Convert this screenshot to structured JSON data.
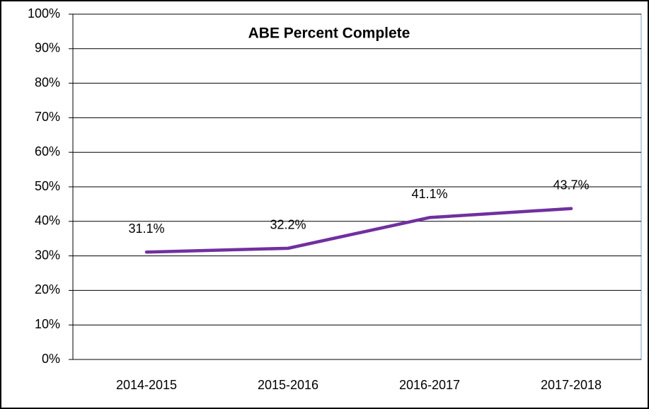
{
  "chart_data": {
    "type": "line",
    "title": "ABE Percent Complete",
    "categories": [
      "2014-2015",
      "2015-2016",
      "2016-2017",
      "2017-2018"
    ],
    "series": [
      {
        "name": "ABE Percent Complete",
        "color": "#7030a0",
        "values": [
          31.1,
          32.2,
          41.1,
          43.7
        ],
        "value_labels": [
          "31.1%",
          "32.2%",
          "41.1%",
          "43.7%"
        ]
      }
    ],
    "ylim": [
      0,
      100
    ],
    "yticks": [
      {
        "value": 0,
        "label": "0%"
      },
      {
        "value": 10,
        "label": "10%"
      },
      {
        "value": 20,
        "label": "20%"
      },
      {
        "value": 30,
        "label": "30%"
      },
      {
        "value": 40,
        "label": "40%"
      },
      {
        "value": 50,
        "label": "50%"
      },
      {
        "value": 60,
        "label": "60%"
      },
      {
        "value": 70,
        "label": "70%"
      },
      {
        "value": 80,
        "label": "80%"
      },
      {
        "value": 90,
        "label": "90%"
      },
      {
        "value": 100,
        "label": "100%"
      }
    ],
    "grid": true
  }
}
